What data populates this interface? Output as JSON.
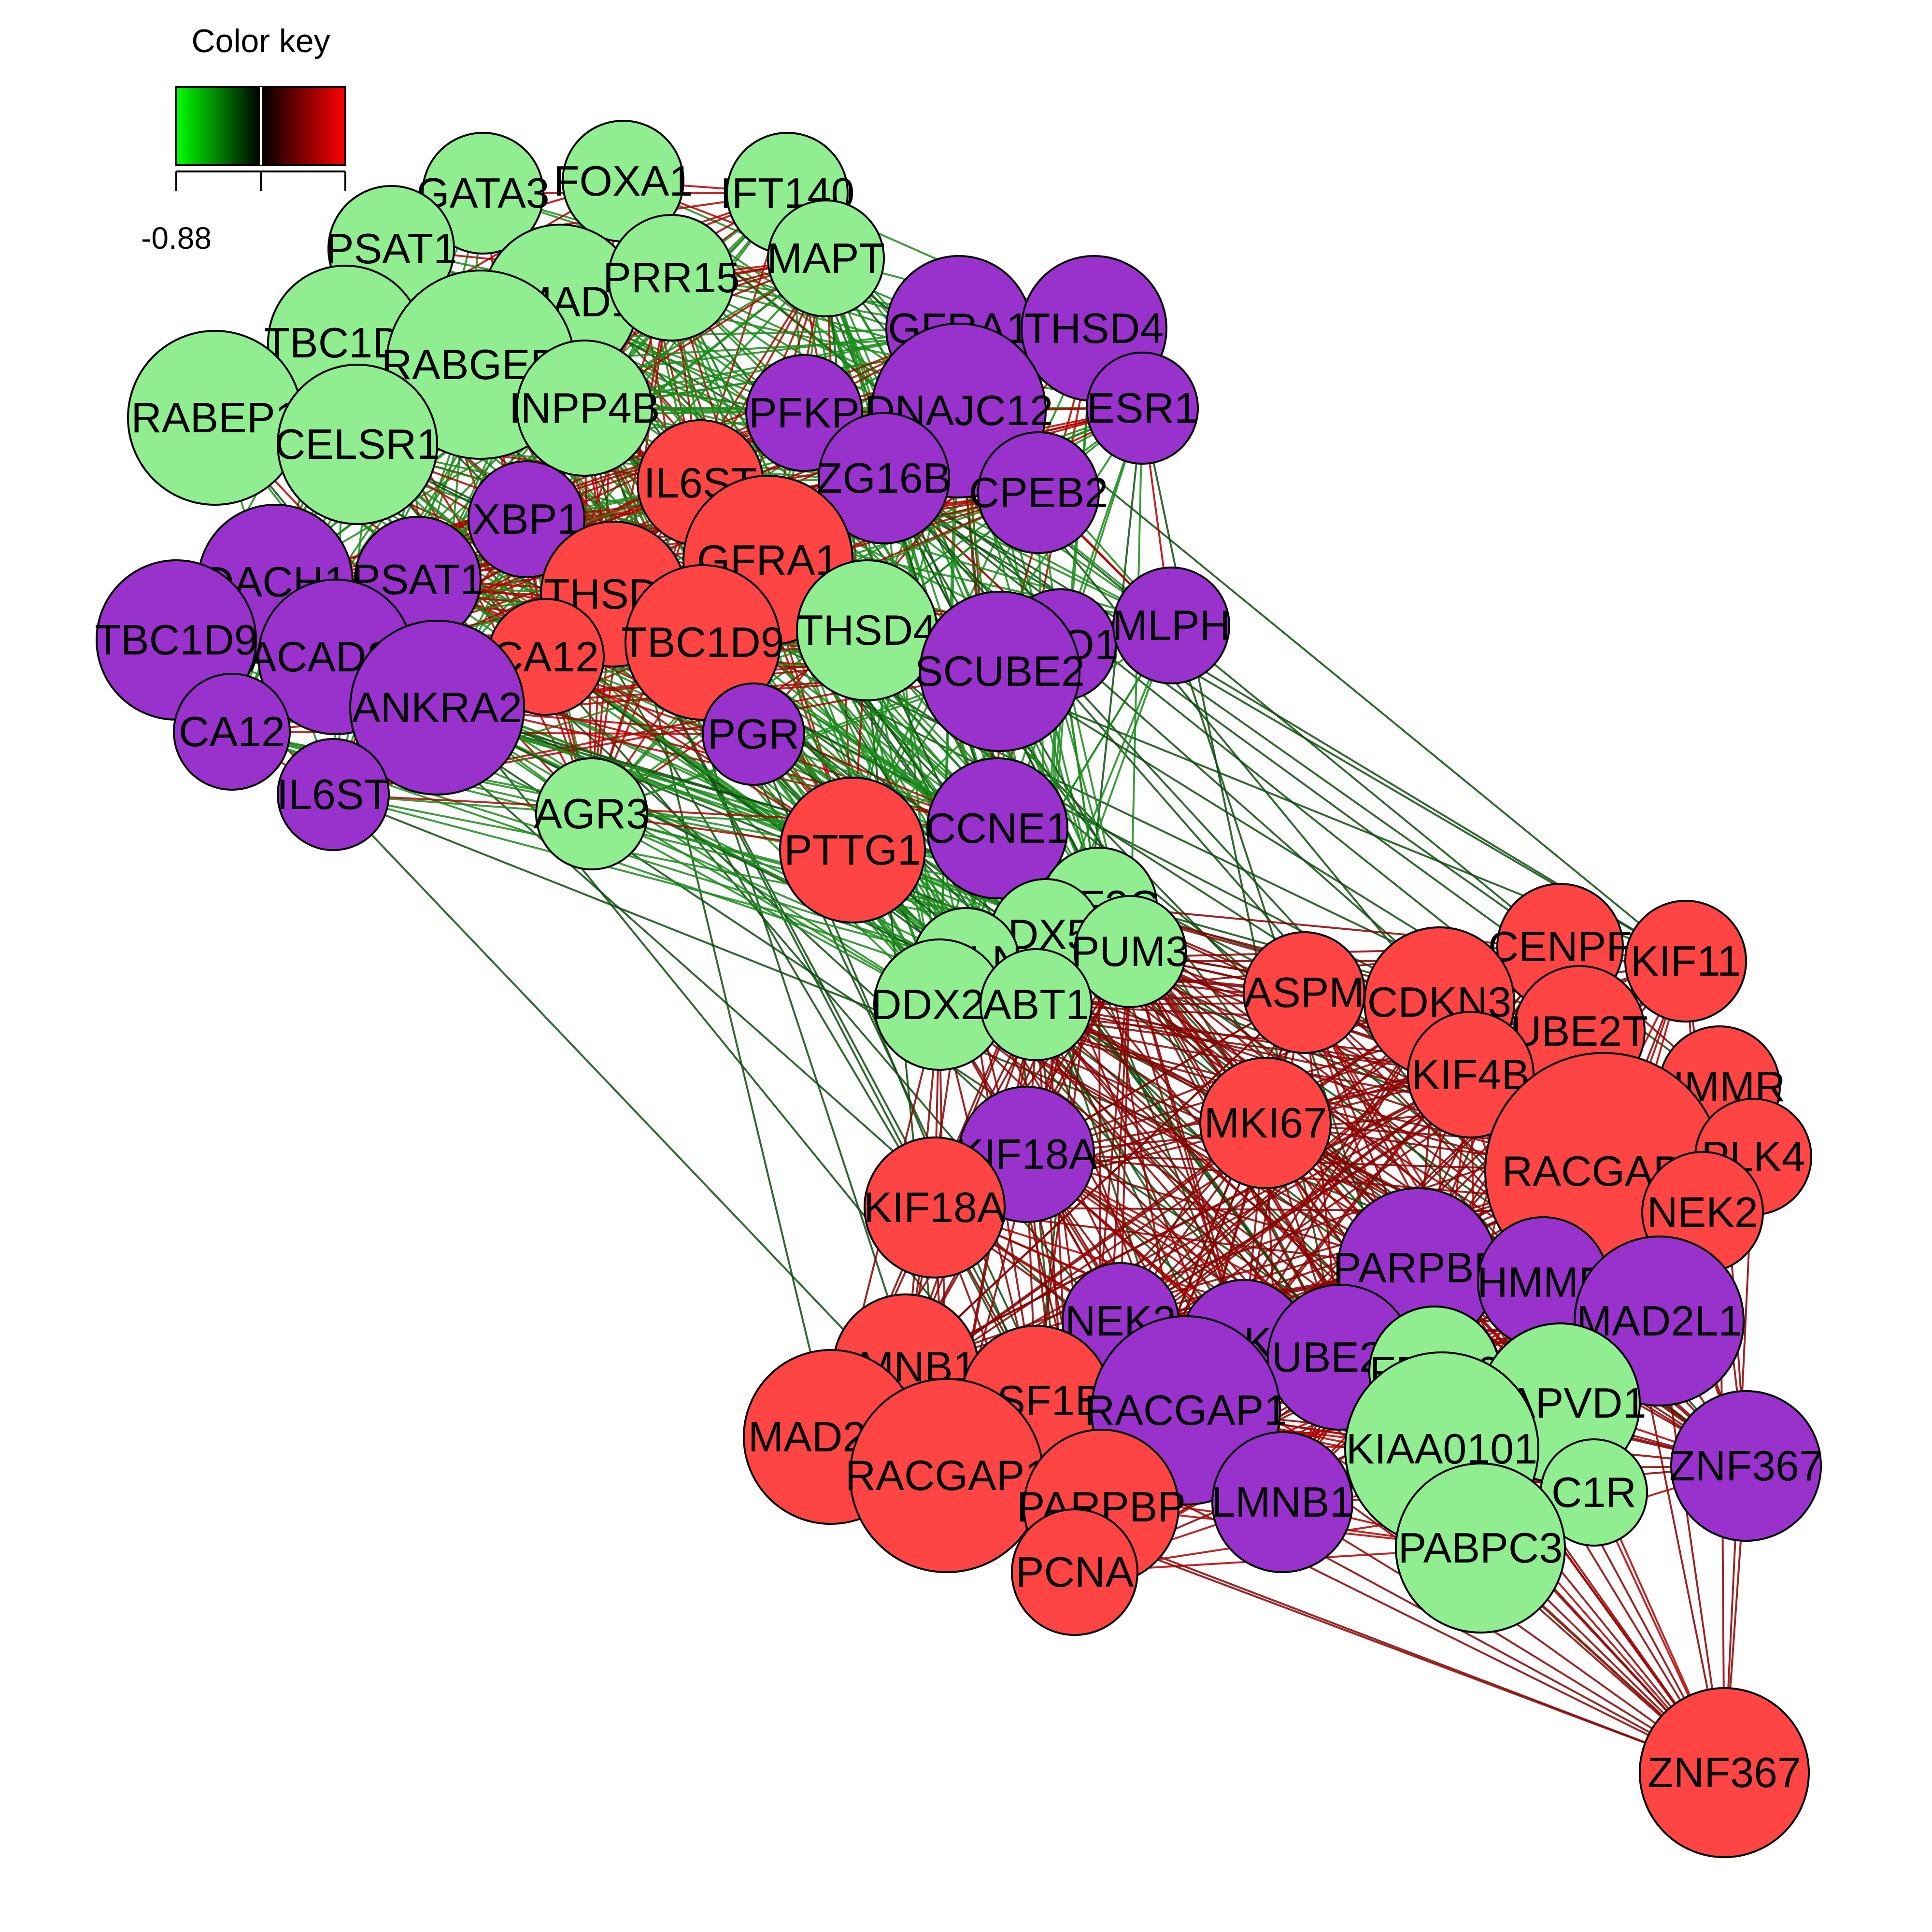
{
  "legend": {
    "title": "Color key",
    "min_label": "-0.88",
    "gradient_colors": [
      "#00ff00",
      "#000000",
      "#ff0000"
    ]
  },
  "colors": {
    "green_node": "#90ee90",
    "purple_node": "#9932cc",
    "red_node": "#ff4444",
    "edge_positive": "#b20000",
    "edge_negative": "#1a8c1a",
    "node_stroke": "#000000"
  },
  "nodes": [
    {
      "id": "n01",
      "label": "GATA3",
      "color": "green"
    },
    {
      "id": "n02",
      "label": "FOXA1",
      "color": "green"
    },
    {
      "id": "n03",
      "label": "IFT140",
      "color": "green"
    },
    {
      "id": "n04",
      "label": "PSAT1",
      "color": "green"
    },
    {
      "id": "n05",
      "label": "UMAD1",
      "color": "green"
    },
    {
      "id": "n06",
      "label": "PRR15",
      "color": "green"
    },
    {
      "id": "n07",
      "label": "MAPT",
      "color": "green"
    },
    {
      "id": "n08",
      "label": "TBC1D9",
      "color": "green"
    },
    {
      "id": "n09",
      "label": "RABGEF1",
      "color": "green"
    },
    {
      "id": "n10",
      "label": "RABEP1",
      "color": "green"
    },
    {
      "id": "n11",
      "label": "CELSR1",
      "color": "green"
    },
    {
      "id": "n12",
      "label": "INPP4B",
      "color": "green"
    },
    {
      "id": "n13",
      "label": "GFRA1",
      "color": "purple"
    },
    {
      "id": "n14",
      "label": "THSD4",
      "color": "purple"
    },
    {
      "id": "n15",
      "label": "PFKP",
      "color": "purple"
    },
    {
      "id": "n16",
      "label": "DNAJC12",
      "color": "purple"
    },
    {
      "id": "n17",
      "label": "ESR1",
      "color": "purple"
    },
    {
      "id": "n18",
      "label": "ZG16B",
      "color": "purple"
    },
    {
      "id": "n19",
      "label": "CPEB2",
      "color": "purple"
    },
    {
      "id": "n20",
      "label": "IL6ST",
      "color": "red"
    },
    {
      "id": "n21",
      "label": "XBP1",
      "color": "purple"
    },
    {
      "id": "n22",
      "label": "GFRA1",
      "color": "red"
    },
    {
      "id": "n23",
      "label": "DACH1",
      "color": "purple"
    },
    {
      "id": "n24",
      "label": "PSAT1",
      "color": "purple"
    },
    {
      "id": "n25",
      "label": "THSD4",
      "color": "red"
    },
    {
      "id": "n26",
      "label": "TBC1D9",
      "color": "red"
    },
    {
      "id": "n27",
      "label": "THSD4",
      "color": "green"
    },
    {
      "id": "n28",
      "label": "TBC1D9",
      "color": "purple"
    },
    {
      "id": "n29",
      "label": "ACADSB",
      "color": "purple"
    },
    {
      "id": "n30",
      "label": "CA12",
      "color": "red"
    },
    {
      "id": "n31",
      "label": "ENO1",
      "color": "purple"
    },
    {
      "id": "n32",
      "label": "MLPH",
      "color": "purple"
    },
    {
      "id": "n33",
      "label": "SCUBE2",
      "color": "purple"
    },
    {
      "id": "n34",
      "label": "CA12",
      "color": "purple"
    },
    {
      "id": "n35",
      "label": "ANKRA2",
      "color": "purple"
    },
    {
      "id": "n36",
      "label": "PGR",
      "color": "purple"
    },
    {
      "id": "n37",
      "label": "IL6ST",
      "color": "purple"
    },
    {
      "id": "n38",
      "label": "AGR3",
      "color": "green"
    },
    {
      "id": "n39",
      "label": "PTTG1",
      "color": "red"
    },
    {
      "id": "n40",
      "label": "CCNE1",
      "color": "purple"
    },
    {
      "id": "n41",
      "label": "KIF2C",
      "color": "green"
    },
    {
      "id": "n42",
      "label": "DDX58",
      "color": "green"
    },
    {
      "id": "n43",
      "label": "PUM3",
      "color": "green"
    },
    {
      "id": "n44",
      "label": "ANLN",
      "color": "green"
    },
    {
      "id": "n45",
      "label": "DDX21",
      "color": "green"
    },
    {
      "id": "n46",
      "label": "ABT1",
      "color": "green"
    },
    {
      "id": "n47",
      "label": "CENPF",
      "color": "red"
    },
    {
      "id": "n48",
      "label": "KIF11",
      "color": "red"
    },
    {
      "id": "n49",
      "label": "ASPM",
      "color": "red"
    },
    {
      "id": "n50",
      "label": "CDKN3",
      "color": "red"
    },
    {
      "id": "n51",
      "label": "UBE2T",
      "color": "red"
    },
    {
      "id": "n52",
      "label": "KIF4B",
      "color": "red"
    },
    {
      "id": "n53",
      "label": "HMMR",
      "color": "red"
    },
    {
      "id": "n54",
      "label": "MKI67",
      "color": "red"
    },
    {
      "id": "n55",
      "label": "KIF18A",
      "color": "purple"
    },
    {
      "id": "n56",
      "label": "RACGAP1",
      "color": "red"
    },
    {
      "id": "n57",
      "label": "PLK4",
      "color": "red"
    },
    {
      "id": "n58",
      "label": "KIF18A",
      "color": "red"
    },
    {
      "id": "n59",
      "label": "NEK2",
      "color": "red"
    },
    {
      "id": "n60",
      "label": "PARPBP",
      "color": "purple"
    },
    {
      "id": "n61",
      "label": "HMMR",
      "color": "purple"
    },
    {
      "id": "n62",
      "label": "NEK2",
      "color": "purple"
    },
    {
      "id": "n63",
      "label": "MAD2L1",
      "color": "purple"
    },
    {
      "id": "n64",
      "label": "PLK4",
      "color": "purple"
    },
    {
      "id": "n65",
      "label": "UBE2T",
      "color": "purple"
    },
    {
      "id": "n66",
      "label": "LMNB1",
      "color": "red"
    },
    {
      "id": "n67",
      "label": "FBXL6",
      "color": "green"
    },
    {
      "id": "n68",
      "label": "GAPVD1",
      "color": "green"
    },
    {
      "id": "n69",
      "label": "ASF1B",
      "color": "red"
    },
    {
      "id": "n70",
      "label": "RACGAP1",
      "color": "purple"
    },
    {
      "id": "n71",
      "label": "MAD2L1",
      "color": "red"
    },
    {
      "id": "n72",
      "label": "KIAA0101",
      "color": "green"
    },
    {
      "id": "n73",
      "label": "ZNF367",
      "color": "purple"
    },
    {
      "id": "n74",
      "label": "RACGAP1",
      "color": "red"
    },
    {
      "id": "n75",
      "label": "C1R",
      "color": "green"
    },
    {
      "id": "n76",
      "label": "PARPBP",
      "color": "red"
    },
    {
      "id": "n77",
      "label": "LMNB1",
      "color": "purple"
    },
    {
      "id": "n78",
      "label": "PABPC3",
      "color": "green"
    },
    {
      "id": "n79",
      "label": "PCNA",
      "color": "red"
    },
    {
      "id": "n80",
      "label": "ZNF367",
      "color": "red"
    }
  ]
}
